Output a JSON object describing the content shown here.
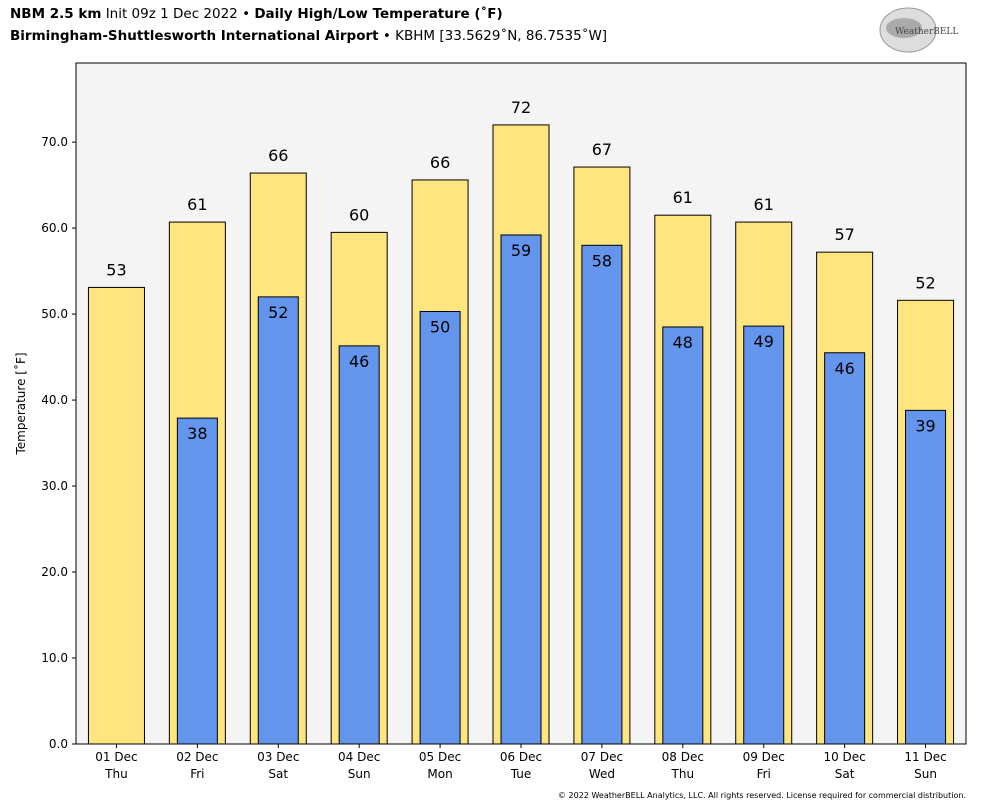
{
  "header": {
    "model": "NBM 2.5 km",
    "init": "Init 09z 1 Dec 2022",
    "sep": " • ",
    "title": "Daily High/Low Temperature (˚F)",
    "station": "Birmingham-Shuttlesworth International Airport",
    "station_info": "KBHM [33.5629˚N, 86.7535˚W]"
  },
  "logo": {
    "text": "WeatherBELL",
    "subtext": "Analytics LLC"
  },
  "footer": "© 2022 WeatherBELL Analytics, LLC. All rights reserved. License required for commercial distribution.",
  "colors": {
    "high": "#ffe57f",
    "low": "#6495ed",
    "plot_bg": "#f4f4f4"
  },
  "chart_data": {
    "type": "bar",
    "title": "Daily High/Low Temperature (˚F)",
    "ylabel": "Temperature [˚F]",
    "xlabel": "",
    "ylim": [
      0,
      79.2
    ],
    "yticks": [
      0,
      10,
      20,
      30,
      40,
      50,
      60,
      70
    ],
    "ytick_labels": [
      "0.0",
      "10.0",
      "20.0",
      "30.0",
      "40.0",
      "50.0",
      "60.0",
      "70.0"
    ],
    "categories": [
      [
        "01 Dec",
        "Thu"
      ],
      [
        "02 Dec",
        "Fri"
      ],
      [
        "03 Dec",
        "Sat"
      ],
      [
        "04 Dec",
        "Sun"
      ],
      [
        "05 Dec",
        "Mon"
      ],
      [
        "06 Dec",
        "Tue"
      ],
      [
        "07 Dec",
        "Wed"
      ],
      [
        "08 Dec",
        "Thu"
      ],
      [
        "09 Dec",
        "Fri"
      ],
      [
        "10 Dec",
        "Sat"
      ],
      [
        "11 Dec",
        "Sun"
      ]
    ],
    "series": [
      {
        "name": "High",
        "values": [
          53.1,
          60.7,
          66.4,
          59.5,
          65.6,
          72.0,
          67.1,
          61.5,
          60.7,
          57.2,
          51.6
        ],
        "labels": [
          "53",
          "61",
          "66",
          "60",
          "66",
          "72",
          "67",
          "61",
          "61",
          "57",
          "52"
        ]
      },
      {
        "name": "Low",
        "values": [
          null,
          37.9,
          52.0,
          46.3,
          50.3,
          59.2,
          58.0,
          48.5,
          48.6,
          45.5,
          38.8
        ],
        "labels": [
          "",
          "38",
          "52",
          "46",
          "50",
          "59",
          "58",
          "48",
          "49",
          "46",
          "39"
        ]
      }
    ]
  }
}
